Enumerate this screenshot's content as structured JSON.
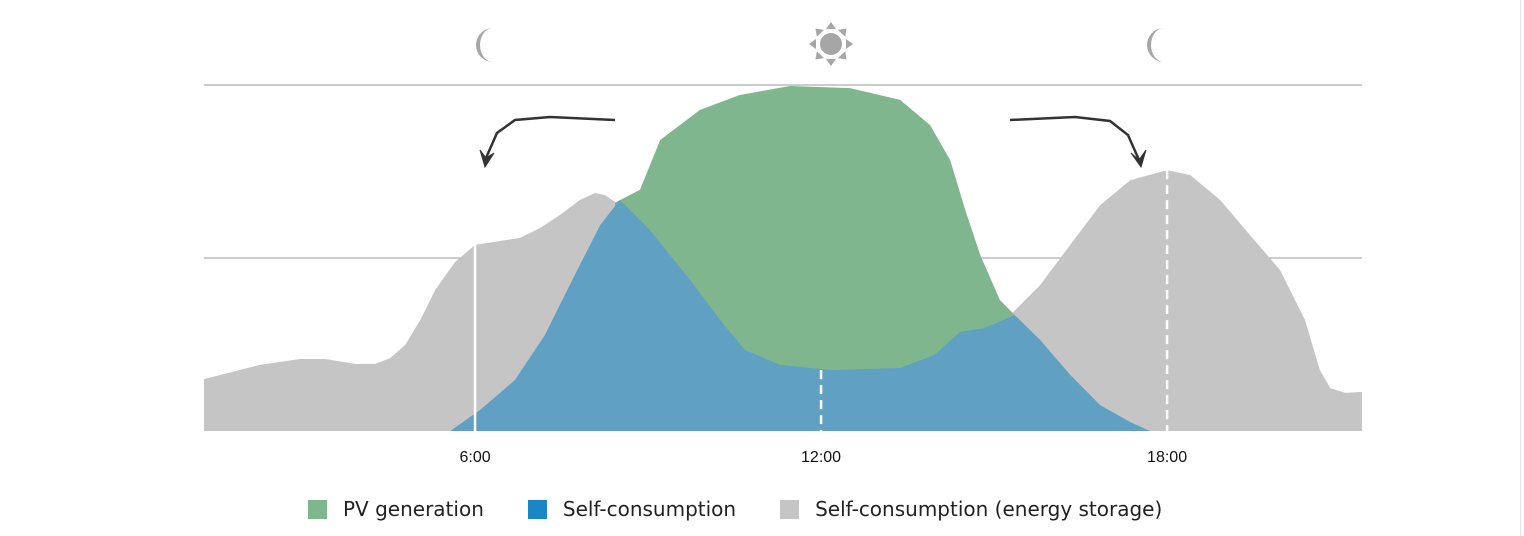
{
  "chart_data": {
    "type": "area",
    "title": "",
    "xlabel": "",
    "ylabel": "",
    "xlim": [
      1.3,
      21.38
    ],
    "ylim": [
      0,
      100
    ],
    "grid": true,
    "gridlines_y": [
      50,
      100
    ],
    "x_ticks": [
      {
        "value": 6,
        "label": "6:00"
      },
      {
        "value": 12,
        "label": "12:00"
      },
      {
        "value": 18,
        "label": "18:00"
      }
    ],
    "legend_position": "bottom",
    "series": [
      {
        "name": "Self-consumption (energy storage)",
        "color": "#c5c5c5",
        "points": [
          [
            1.3,
            15.0
          ],
          [
            2.27,
            19.1
          ],
          [
            2.97,
            20.8
          ],
          [
            3.4,
            20.8
          ],
          [
            3.92,
            19.4
          ],
          [
            4.27,
            19.4
          ],
          [
            4.53,
            21.1
          ],
          [
            4.79,
            24.9
          ],
          [
            5.05,
            32.1
          ],
          [
            5.31,
            40.8
          ],
          [
            5.65,
            48.8
          ],
          [
            6.0,
            53.8
          ],
          [
            6.78,
            55.8
          ],
          [
            7.13,
            58.7
          ],
          [
            7.47,
            62.4
          ],
          [
            7.82,
            66.8
          ],
          [
            8.08,
            68.8
          ],
          [
            8.25,
            68.2
          ],
          [
            8.51,
            65.3
          ],
          [
            9.9,
            40
          ],
          [
            13.37,
            30
          ],
          [
            15.1,
            37.9
          ],
          [
            15.28,
            33.5
          ],
          [
            15.8,
            42.2
          ],
          [
            16.32,
            53.8
          ],
          [
            16.84,
            65.3
          ],
          [
            17.36,
            72.5
          ],
          [
            18.0,
            75.4
          ],
          [
            18.4,
            74.0
          ],
          [
            18.92,
            66.8
          ],
          [
            19.44,
            56.6
          ],
          [
            19.96,
            46.5
          ],
          [
            20.39,
            32.1
          ],
          [
            20.65,
            17.6
          ],
          [
            20.83,
            12.4
          ],
          [
            21.09,
            11.0
          ],
          [
            21.38,
            11.3
          ]
        ]
      },
      {
        "name": "PV generation",
        "color": "#7fb68e",
        "points": [
          [
            8.43,
            66
          ],
          [
            8.86,
            69.7
          ],
          [
            9.21,
            84.1
          ],
          [
            9.9,
            92.8
          ],
          [
            10.59,
            97.1
          ],
          [
            11.46,
            99.7
          ],
          [
            12.5,
            99.1
          ],
          [
            13.37,
            95.7
          ],
          [
            13.89,
            88.4
          ],
          [
            14.24,
            78.3
          ],
          [
            14.5,
            63.9
          ],
          [
            14.76,
            50.9
          ],
          [
            15.1,
            37.9
          ],
          [
            15.36,
            33.5
          ],
          [
            15.5,
            0
          ]
        ]
      },
      {
        "name": "Self-consumption",
        "color": "#5fa0c3",
        "legend_color": "#1a87c4",
        "points": [
          [
            5.57,
            0
          ],
          [
            6.09,
            6.1
          ],
          [
            6.69,
            14.7
          ],
          [
            7.21,
            27.7
          ],
          [
            7.73,
            45.1
          ],
          [
            8.17,
            59.5
          ],
          [
            8.51,
            66.8
          ],
          [
            9.03,
            58.1
          ],
          [
            9.73,
            43.6
          ],
          [
            10.25,
            32.1
          ],
          [
            10.68,
            23.4
          ],
          [
            11.29,
            19.1
          ],
          [
            12.19,
            17.6
          ],
          [
            13.37,
            18.2
          ],
          [
            13.97,
            22.0
          ],
          [
            14.41,
            28.6
          ],
          [
            14.84,
            29.8
          ],
          [
            15.36,
            33.5
          ],
          [
            15.8,
            26.3
          ],
          [
            16.32,
            16.2
          ],
          [
            16.84,
            7.5
          ],
          [
            17.36,
            2.6
          ],
          [
            17.7,
            0
          ]
        ]
      }
    ],
    "markers": [
      {
        "x": 6,
        "top": 53.8,
        "style": "solid"
      },
      {
        "x": 12,
        "top": 17.6,
        "style": "dashed"
      },
      {
        "x": 18,
        "top": 75.4,
        "style": "dashed"
      }
    ],
    "annotations": [
      {
        "icon": "moon-icon",
        "x": 6
      },
      {
        "icon": "sun-icon",
        "x": 12
      },
      {
        "icon": "moon-icon",
        "x": 18
      }
    ]
  },
  "legend": [
    {
      "label": "PV generation",
      "color": "#7fb68e"
    },
    {
      "label": "Self-consumption",
      "color": "#1a87c4"
    },
    {
      "label": "Self-consumption (energy storage)",
      "color": "#c5c5c5"
    }
  ]
}
